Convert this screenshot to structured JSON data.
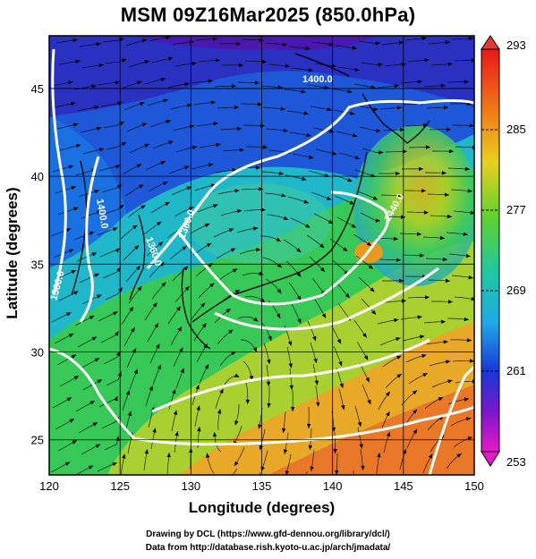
{
  "chart": {
    "title": "MSM 09Z16Mar2025 (850.0hPa)",
    "xlabel": "Longitude (degrees)",
    "ylabel": "Latitude  (degrees)",
    "x_ticks": [
      "120",
      "125",
      "130",
      "135",
      "140",
      "145",
      "150"
    ],
    "y_ticks": [
      "25",
      "30",
      "35",
      "40",
      "45"
    ],
    "colorbar_ticks": [
      "293",
      "285",
      "277",
      "269",
      "261",
      "253"
    ],
    "contour_labels": [
      "1400.0",
      "1360.0",
      "1400.0",
      "1360.0",
      "1360.0",
      "1440.0",
      "1440.0"
    ]
  },
  "credits": {
    "line1": "Drawing by DCL (https://www.gfd-dennou.org/library/dcl/)",
    "line2": "Data from http://database.rish.kyoto-u.ac.jp/arch/jmadata/"
  },
  "chart_data": {
    "type": "heatmap",
    "field": "temperature with geopotential height contours and streamlines",
    "xlim": [
      120,
      150
    ],
    "ylim": [
      23,
      48
    ],
    "colorbar_range": [
      253,
      293
    ],
    "colorbar_ticks": [
      293,
      285,
      277,
      269,
      261,
      253
    ],
    "grid": true
  }
}
